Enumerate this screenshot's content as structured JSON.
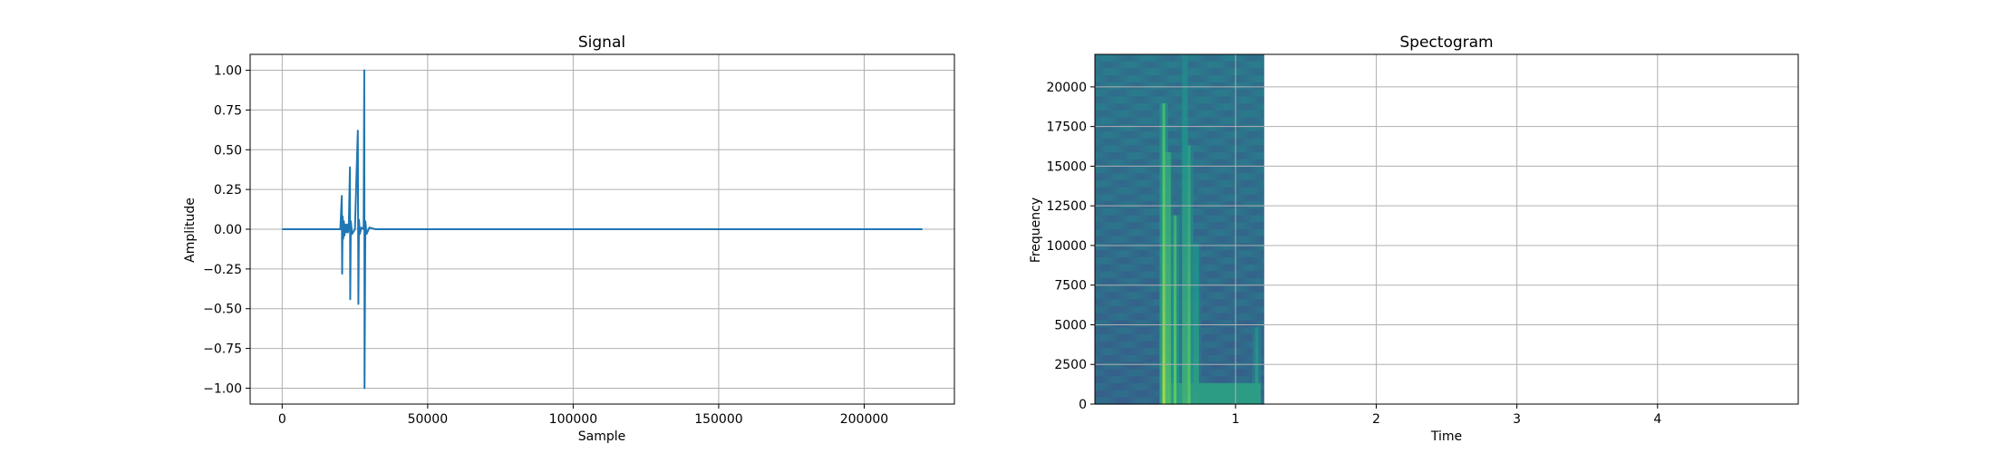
{
  "chart_data": [
    {
      "type": "line",
      "title": "Signal",
      "xlabel": "Sample",
      "ylabel": "Amplitude",
      "xlim": [
        -11000,
        231000
      ],
      "ylim": [
        -1.1,
        1.1
      ],
      "grid": true,
      "line_color": "#1f77b4",
      "xticks": [
        0,
        50000,
        100000,
        150000,
        200000
      ],
      "xtick_labels": [
        "0",
        "50000",
        "100000",
        "150000",
        "200000"
      ],
      "yticks": [
        1.0,
        0.75,
        0.5,
        0.25,
        0.0,
        -0.25,
        -0.5,
        -0.75,
        -1.0
      ],
      "ytick_labels": [
        "1.00",
        "0.75",
        "0.50",
        "0.25",
        "0.00",
        "−0.25",
        "−0.50",
        "−0.75",
        "−1.00"
      ],
      "series": [
        {
          "x": [
            0,
            20000,
            20500,
            20600,
            20800,
            21000,
            21200,
            21400,
            21700,
            22000,
            22300,
            22600,
            22900,
            23300,
            23400,
            23600,
            24000,
            25000,
            26000,
            26200,
            26400,
            26700,
            27200,
            28000,
            28200,
            28300,
            28600,
            29000,
            30000,
            32000,
            35000,
            40000,
            48000,
            220000
          ],
          "y": [
            0,
            0,
            0.21,
            -0.28,
            0.08,
            -0.06,
            0.05,
            -0.04,
            0.03,
            -0.02,
            0.03,
            -0.02,
            0.01,
            0.39,
            -0.44,
            0.05,
            -0.03,
            0.0,
            0.62,
            -0.47,
            0.06,
            -0.03,
            0.01,
            0.0,
            1.0,
            -1.0,
            0.05,
            -0.03,
            0.01,
            0.0,
            0.0,
            0.0,
            0.0,
            0
          ]
        }
      ]
    },
    {
      "type": "heatmap",
      "title": "Spectogram",
      "xlabel": "Time",
      "ylabel": "Frequency",
      "xlim": [
        0,
        5
      ],
      "ylim": [
        0,
        22050
      ],
      "data_xlim": [
        0,
        1.2
      ],
      "grid": true,
      "colormap": "viridis",
      "xticks": [
        1,
        2,
        3,
        4
      ],
      "xtick_labels": [
        "1",
        "2",
        "3",
        "4"
      ],
      "yticks": [
        0,
        2500,
        5000,
        7500,
        10000,
        12500,
        15000,
        17500,
        20000
      ],
      "ytick_labels": [
        "0",
        "2500",
        "5000",
        "7500",
        "10000",
        "12500",
        "15000",
        "17500",
        "20000"
      ],
      "bright_bands": [
        {
          "time": 0.49,
          "freq_max": 19000,
          "level": 0.62
        },
        {
          "time": 0.52,
          "freq_max": 16000,
          "level": 0.58
        },
        {
          "time": 0.57,
          "freq_max": 12000,
          "level": 0.5
        },
        {
          "time": 0.64,
          "freq_max": 22050,
          "level": 0.5
        },
        {
          "time": 0.67,
          "freq_max": 16500,
          "level": 0.48
        },
        {
          "time": 0.72,
          "freq_max": 10000,
          "level": 0.4
        },
        {
          "time": 1.15,
          "freq_max": 5000,
          "level": 0.3
        }
      ]
    }
  ]
}
